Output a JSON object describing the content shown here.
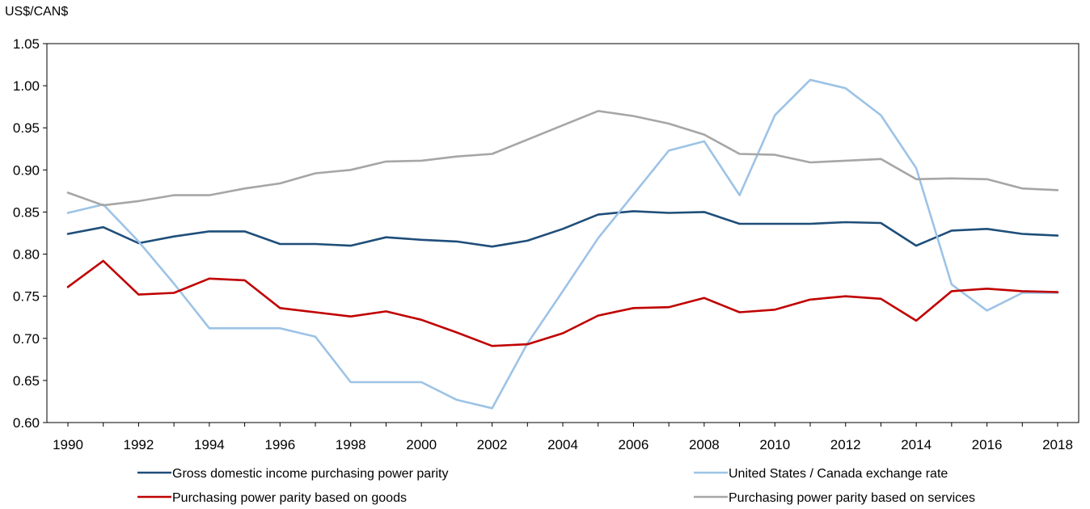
{
  "chart_data": {
    "type": "line",
    "ylabel": "US$/CAN$",
    "ylim": [
      0.6,
      1.05
    ],
    "yticks": [
      "1.05",
      "1.00",
      "0.95",
      "0.90",
      "0.85",
      "0.80",
      "0.75",
      "0.70",
      "0.65",
      "0.60"
    ],
    "x": [
      1990,
      1991,
      1992,
      1993,
      1994,
      1995,
      1996,
      1997,
      1998,
      1999,
      2000,
      2001,
      2002,
      2003,
      2004,
      2005,
      2006,
      2007,
      2008,
      2009,
      2010,
      2011,
      2012,
      2013,
      2014,
      2015,
      2016,
      2017,
      2018
    ],
    "xticks": [
      "1990",
      "1992",
      "1994",
      "1996",
      "1998",
      "2000",
      "2002",
      "2004",
      "2006",
      "2008",
      "2010",
      "2012",
      "2014",
      "2016",
      "2018"
    ],
    "grid": false,
    "legend_position": "bottom",
    "series": [
      {
        "name": "Gross domestic income purchasing power parity",
        "color": "#1f4e79",
        "values": [
          0.824,
          0.832,
          0.813,
          0.821,
          0.827,
          0.827,
          0.812,
          0.812,
          0.81,
          0.82,
          0.817,
          0.815,
          0.809,
          0.816,
          0.83,
          0.847,
          0.851,
          0.849,
          0.85,
          0.836,
          0.836,
          0.836,
          0.838,
          0.837,
          0.81,
          0.828,
          0.83,
          0.824,
          0.822
        ]
      },
      {
        "name": "United States / Canada exchange rate",
        "color": "#9dc3e6",
        "values": [
          0.849,
          0.859,
          0.815,
          0.765,
          0.712,
          0.712,
          0.712,
          0.702,
          0.648,
          0.648,
          0.648,
          0.627,
          0.617,
          0.694,
          0.756,
          0.819,
          0.871,
          0.923,
          0.934,
          0.87,
          0.965,
          1.007,
          0.997,
          0.965,
          0.902,
          0.764,
          0.733,
          0.754,
          0.754
        ]
      },
      {
        "name": "Purchasing power parity based on goods",
        "color": "#c00000",
        "values": [
          0.761,
          0.792,
          0.752,
          0.754,
          0.771,
          0.769,
          0.736,
          0.731,
          0.726,
          0.732,
          0.722,
          0.707,
          0.691,
          0.693,
          0.706,
          0.727,
          0.736,
          0.737,
          0.748,
          0.731,
          0.734,
          0.746,
          0.75,
          0.747,
          0.721,
          0.756,
          0.759,
          0.756,
          0.755
        ]
      },
      {
        "name": "Purchasing power parity based on services",
        "color": "#a6a6a6",
        "values": [
          0.873,
          0.858,
          0.863,
          0.87,
          0.87,
          0.878,
          0.884,
          0.896,
          0.9,
          0.91,
          0.911,
          0.916,
          0.919,
          0.936,
          0.953,
          0.97,
          0.964,
          0.955,
          0.942,
          0.919,
          0.918,
          0.909,
          0.911,
          0.913,
          0.889,
          0.89,
          0.889,
          0.878,
          0.876
        ]
      }
    ]
  }
}
